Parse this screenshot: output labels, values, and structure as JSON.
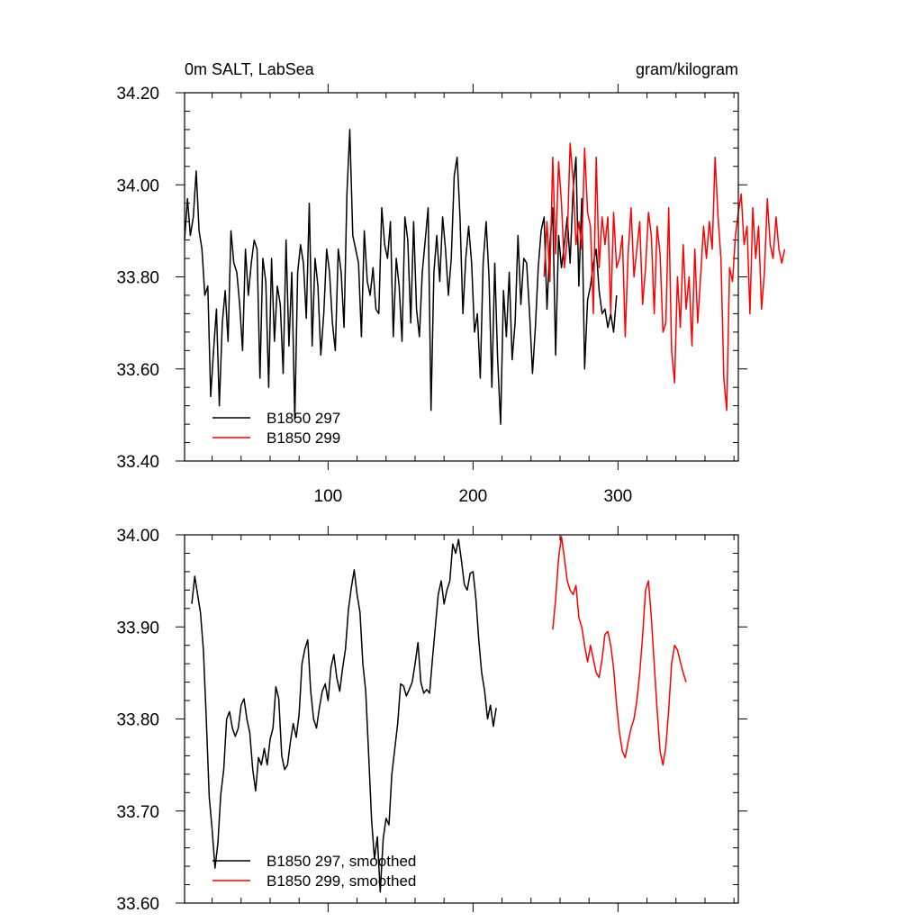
{
  "figure": {
    "left_title": "0m SALT, LabSea",
    "right_title": "gram/kilogram"
  },
  "chart_data": [
    {
      "type": "line",
      "title": "",
      "xlabel": "",
      "ylabel": "",
      "xlim": [
        1,
        383
      ],
      "ylim": [
        33.4,
        34.2
      ],
      "xticks": [
        100,
        200,
        300
      ],
      "xtick_labels": [
        "100",
        "200",
        "300"
      ],
      "yticks": [
        33.4,
        33.6,
        33.8,
        34.0,
        34.2
      ],
      "ytick_labels": [
        "33.40",
        "33.60",
        "33.80",
        "34.00",
        "34.20"
      ],
      "legend": {
        "placement": "bottom-left"
      },
      "series": [
        {
          "name": "B1850 297",
          "color": "#000000",
          "x_start": 1,
          "x_step": 2,
          "values": [
            33.88,
            33.97,
            33.89,
            33.93,
            34.03,
            33.9,
            33.86,
            33.76,
            33.78,
            33.54,
            33.64,
            33.73,
            33.52,
            33.7,
            33.77,
            33.66,
            33.9,
            33.83,
            33.81,
            33.74,
            33.64,
            33.86,
            33.76,
            33.83,
            33.88,
            33.86,
            33.58,
            33.84,
            33.79,
            33.56,
            33.84,
            33.66,
            33.78,
            33.74,
            33.59,
            33.88,
            33.65,
            33.81,
            33.49,
            33.81,
            33.87,
            33.83,
            33.71,
            33.96,
            33.65,
            33.84,
            33.78,
            33.63,
            33.72,
            33.86,
            33.81,
            33.7,
            33.64,
            33.86,
            33.81,
            33.69,
            33.98,
            34.12,
            33.89,
            33.86,
            33.83,
            33.67,
            33.9,
            33.79,
            33.76,
            33.82,
            33.73,
            33.72,
            33.95,
            33.87,
            33.84,
            33.92,
            33.67,
            33.84,
            33.78,
            33.66,
            33.93,
            33.88,
            33.7,
            33.92,
            33.73,
            33.67,
            33.81,
            33.88,
            33.95,
            33.51,
            33.81,
            33.89,
            33.79,
            33.93,
            33.86,
            33.76,
            33.84,
            34.02,
            34.06,
            33.93,
            33.72,
            33.84,
            33.91,
            33.83,
            33.68,
            33.72,
            33.58,
            33.83,
            33.92,
            33.8,
            33.56,
            33.83,
            33.62,
            33.48,
            33.77,
            33.67,
            33.81,
            33.62,
            33.7,
            33.89,
            33.74,
            33.84,
            33.83,
            33.72,
            33.59,
            33.69,
            33.82,
            33.9,
            33.93,
            33.73,
            33.87,
            33.95,
            33.63,
            33.89,
            33.82,
            33.87,
            33.93,
            33.83,
            33.99,
            34.06,
            33.78,
            33.97,
            33.6,
            33.75,
            33.78,
            33.83,
            33.86,
            33.77,
            33.72,
            33.73,
            33.69,
            33.72,
            33.68,
            33.76
          ]
        },
        {
          "name": "B1850 299",
          "color": "#ff0000",
          "x_start": 249,
          "x_step": 2,
          "values": [
            33.8,
            33.92,
            33.79,
            34.06,
            33.85,
            34.05,
            33.96,
            33.82,
            33.88,
            34.09,
            34.01,
            33.87,
            33.92,
            33.86,
            34.08,
            33.94,
            33.91,
            33.72,
            34.06,
            33.82,
            33.93,
            33.87,
            33.93,
            33.72,
            33.94,
            33.82,
            33.84,
            33.89,
            33.67,
            33.85,
            33.95,
            33.8,
            33.86,
            33.92,
            33.74,
            33.82,
            33.94,
            33.89,
            33.72,
            33.91,
            33.85,
            33.68,
            33.7,
            33.95,
            33.64,
            33.57,
            33.8,
            33.69,
            33.87,
            33.73,
            33.8,
            33.65,
            33.86,
            33.7,
            33.8,
            33.91,
            33.84,
            33.92,
            33.86,
            34.06,
            33.93,
            33.84,
            33.58,
            33.51,
            33.82,
            33.79,
            33.89,
            33.94,
            33.98,
            33.87,
            33.91,
            33.72,
            33.95,
            33.84,
            33.91,
            33.73,
            33.81,
            33.97,
            33.87,
            33.84,
            33.93,
            33.86,
            33.83,
            33.86
          ]
        }
      ]
    },
    {
      "type": "line",
      "title": "",
      "xlabel": "",
      "ylabel": "",
      "xlim": [
        1,
        383
      ],
      "ylim": [
        33.6,
        34.0
      ],
      "xticks": [
        100,
        200,
        300
      ],
      "xtick_labels": [],
      "yticks": [
        33.6,
        33.7,
        33.8,
        33.9,
        34.0
      ],
      "ytick_labels": [
        "33.60",
        "33.70",
        "33.80",
        "33.90",
        "34.00"
      ],
      "legend": {
        "placement": "bottom-left"
      },
      "series": [
        {
          "name": "B1850 297, smoothed",
          "color": "#000000",
          "x_start": 6,
          "x_step": 2,
          "values": [
            33.925,
            33.955,
            33.935,
            33.915,
            33.875,
            33.8,
            33.715,
            33.68,
            33.638,
            33.665,
            33.718,
            33.745,
            33.8,
            33.808,
            33.79,
            33.781,
            33.79,
            33.815,
            33.822,
            33.8,
            33.785,
            33.745,
            33.722,
            33.758,
            33.75,
            33.768,
            33.75,
            33.778,
            33.79,
            33.835,
            33.822,
            33.76,
            33.745,
            33.75,
            33.775,
            33.795,
            33.78,
            33.805,
            33.86,
            33.876,
            33.886,
            33.83,
            33.8,
            33.79,
            33.812,
            33.83,
            33.838,
            33.82,
            33.856,
            33.87,
            33.845,
            33.83,
            33.855,
            33.876,
            33.918,
            33.942,
            33.962,
            33.935,
            33.916,
            33.86,
            33.83,
            33.76,
            33.69,
            33.648,
            33.672,
            33.612,
            33.67,
            33.692,
            33.685,
            33.74,
            33.767,
            33.795,
            33.838,
            33.836,
            33.825,
            33.832,
            33.84,
            33.86,
            33.883,
            33.84,
            33.828,
            33.832,
            33.828,
            33.865,
            33.9,
            33.935,
            33.95,
            33.925,
            33.94,
            33.95,
            33.99,
            33.98,
            33.995,
            33.972,
            33.946,
            33.94,
            33.958,
            33.96,
            33.93,
            33.885,
            33.85,
            33.83,
            33.8,
            33.815,
            33.792,
            33.812
          ]
        },
        {
          "name": "B1850 299, smoothed",
          "color": "#ff0000",
          "x_start": 255,
          "x_step": 2,
          "values": [
            33.897,
            33.93,
            33.975,
            33.998,
            33.975,
            33.95,
            33.94,
            33.935,
            33.945,
            33.91,
            33.9,
            33.88,
            33.862,
            33.88,
            33.865,
            33.85,
            33.845,
            33.865,
            33.892,
            33.895,
            33.88,
            33.855,
            33.815,
            33.785,
            33.765,
            33.758,
            33.775,
            33.79,
            33.8,
            33.82,
            33.85,
            33.89,
            33.94,
            33.95,
            33.91,
            33.86,
            33.81,
            33.765,
            33.75,
            33.77,
            33.81,
            33.86,
            33.88,
            33.875,
            33.862,
            33.85,
            33.84
          ]
        }
      ]
    }
  ]
}
